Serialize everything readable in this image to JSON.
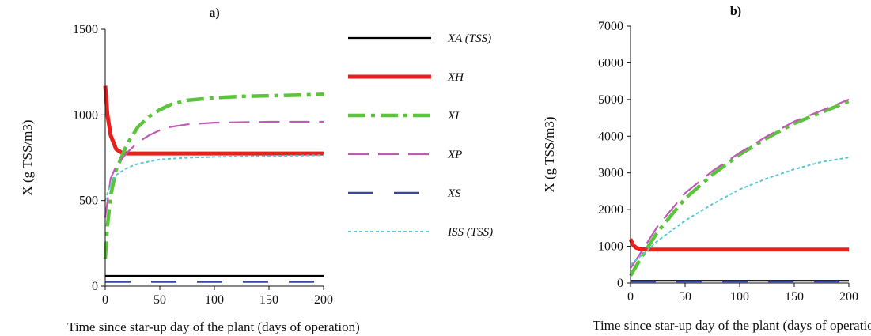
{
  "chart_data": [
    {
      "type": "line",
      "title": "a)",
      "xlabel": "Time since star-up day of the plant (days of operation)",
      "ylabel": "X  (g TSS/m3)",
      "xlim": [
        0,
        200
      ],
      "ylim": [
        0,
        1500
      ],
      "xticks": [
        0,
        50,
        100,
        150,
        200
      ],
      "yticks": [
        0,
        500,
        1000,
        1500
      ],
      "grid": false,
      "legend_position": "right",
      "series": [
        {
          "name": "XA (TSS)",
          "color": "#000000",
          "style": "solid",
          "x": [
            0,
            200
          ],
          "y": [
            60,
            60
          ]
        },
        {
          "name": "XH",
          "color": "#e8201e",
          "style": "solid-thick",
          "x": [
            0,
            2,
            5,
            10,
            15,
            20,
            30,
            50,
            100,
            150,
            200
          ],
          "y": [
            1170,
            1000,
            880,
            800,
            780,
            775,
            775,
            775,
            775,
            775,
            775
          ]
        },
        {
          "name": "XI",
          "color": "#5cc33c",
          "style": "dashdot",
          "x": [
            0,
            2,
            5,
            10,
            20,
            30,
            40,
            50,
            60,
            75,
            100,
            125,
            150,
            175,
            200
          ],
          "y": [
            160,
            350,
            530,
            680,
            830,
            930,
            990,
            1030,
            1060,
            1085,
            1100,
            1108,
            1112,
            1115,
            1120
          ]
        },
        {
          "name": "XP",
          "color": "#c05ab5",
          "style": "longdash",
          "x": [
            0,
            5,
            10,
            20,
            30,
            40,
            50,
            60,
            75,
            100,
            150,
            200
          ],
          "y": [
            400,
            630,
            700,
            780,
            840,
            880,
            910,
            930,
            945,
            955,
            960,
            960
          ]
        },
        {
          "name": "XS",
          "color": "#3a47a0",
          "style": "longdashgap",
          "x": [
            0,
            200
          ],
          "y": [
            25,
            25
          ]
        },
        {
          "name": "ISS (TSS)",
          "color": "#59c5d6",
          "style": "dotted",
          "x": [
            0,
            5,
            10,
            20,
            30,
            50,
            75,
            100,
            150,
            200
          ],
          "y": [
            500,
            600,
            650,
            690,
            715,
            740,
            750,
            755,
            760,
            765
          ]
        }
      ]
    },
    {
      "type": "line",
      "title": "b)",
      "xlabel": "Time since star-up day of the plant (days of operation)",
      "ylabel": "X  (g TSS/m3)",
      "xlim": [
        0,
        200
      ],
      "ylim": [
        0,
        7000
      ],
      "xticks": [
        0,
        50,
        100,
        150,
        200
      ],
      "yticks": [
        0,
        1000,
        2000,
        3000,
        4000,
        5000,
        6000,
        7000
      ],
      "grid": false,
      "legend_position": "none",
      "series": [
        {
          "name": "XA (TSS)",
          "color": "#000000",
          "style": "solid",
          "x": [
            0,
            200
          ],
          "y": [
            60,
            60
          ]
        },
        {
          "name": "XH",
          "color": "#e8201e",
          "style": "solid-thick",
          "x": [
            0,
            2,
            5,
            10,
            15,
            20,
            50,
            100,
            150,
            200
          ],
          "y": [
            1200,
            1050,
            960,
            920,
            910,
            910,
            910,
            910,
            910,
            910
          ]
        },
        {
          "name": "XI",
          "color": "#5cc33c",
          "style": "dashdot",
          "x": [
            0,
            10,
            25,
            50,
            75,
            100,
            125,
            150,
            175,
            200
          ],
          "y": [
            200,
            700,
            1400,
            2300,
            2950,
            3500,
            3950,
            4350,
            4650,
            4950
          ]
        },
        {
          "name": "XP",
          "color": "#c05ab5",
          "style": "longdash",
          "x": [
            0,
            10,
            25,
            50,
            75,
            100,
            125,
            150,
            175,
            200
          ],
          "y": [
            400,
            850,
            1550,
            2450,
            3050,
            3550,
            4000,
            4400,
            4700,
            5000
          ]
        },
        {
          "name": "XS",
          "color": "#3a47a0",
          "style": "longdashgap",
          "x": [
            0,
            200
          ],
          "y": [
            40,
            40
          ]
        },
        {
          "name": "ISS (TSS)",
          "color": "#59c5d6",
          "style": "dotted",
          "x": [
            0,
            10,
            25,
            50,
            75,
            100,
            125,
            150,
            175,
            200
          ],
          "y": [
            500,
            750,
            1150,
            1700,
            2150,
            2550,
            2850,
            3100,
            3300,
            3420
          ]
        }
      ]
    }
  ]
}
